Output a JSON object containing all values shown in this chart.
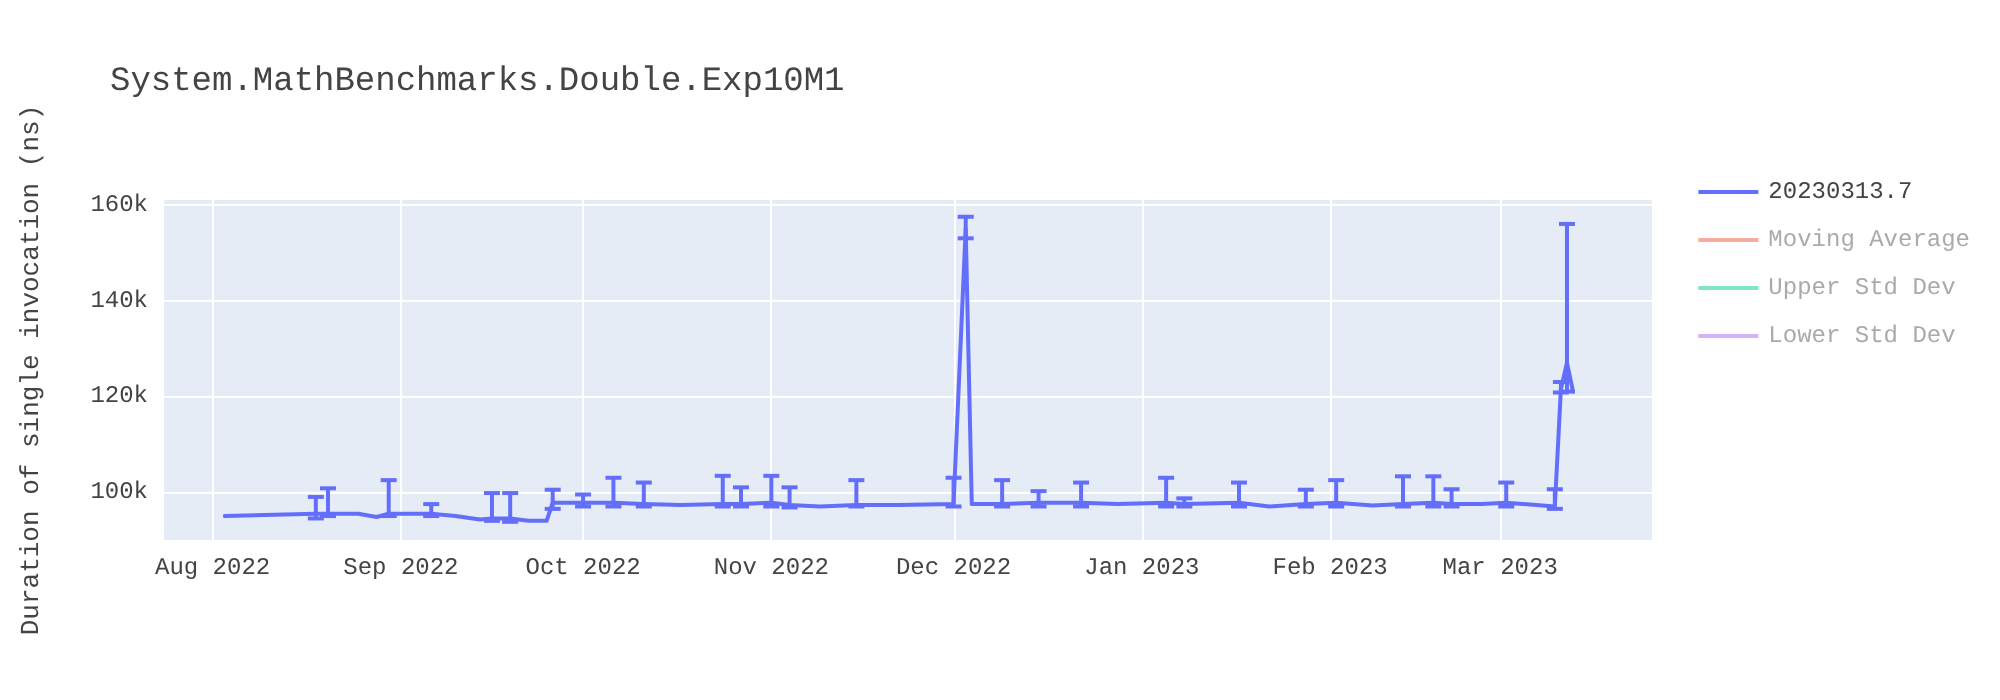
{
  "chart_data": {
    "type": "line",
    "title": "System.MathBenchmarks.Double.Exp10M1",
    "ylabel": "Duration of single invocation (ns)",
    "xlim": [
      "2022-07-24",
      "2023-03-26"
    ],
    "xticks": [
      {
        "value": "2022-08-01",
        "label": "Aug 2022"
      },
      {
        "value": "2022-09-01",
        "label": "Sep 2022"
      },
      {
        "value": "2022-10-01",
        "label": "Oct 2022"
      },
      {
        "value": "2022-11-01",
        "label": "Nov 2022"
      },
      {
        "value": "2022-12-01",
        "label": "Dec 2022"
      },
      {
        "value": "2023-01-01",
        "label": "Jan 2023"
      },
      {
        "value": "2023-02-01",
        "label": "Feb 2023"
      },
      {
        "value": "2023-03-01",
        "label": "Mar 2023"
      }
    ],
    "ylim": [
      90000,
      161000
    ],
    "yticks": [
      {
        "value": 100000,
        "label": "100k"
      },
      {
        "value": 120000,
        "label": "120k"
      },
      {
        "value": 140000,
        "label": "140k"
      },
      {
        "value": 160000,
        "label": "160k"
      }
    ],
    "grid": true,
    "legend": "top right",
    "series": [
      {
        "name": "20230313.7",
        "color": "#636efa",
        "x": [
          "2022-08-03",
          "2022-08-18",
          "2022-08-20",
          "2022-08-25",
          "2022-08-28",
          "2022-08-30",
          "2022-09-02",
          "2022-09-06",
          "2022-09-10",
          "2022-09-14",
          "2022-09-16",
          "2022-09-19",
          "2022-09-22",
          "2022-09-25",
          "2022-09-26",
          "2022-10-01",
          "2022-10-06",
          "2022-10-11",
          "2022-10-17",
          "2022-10-24",
          "2022-10-27",
          "2022-11-01",
          "2022-11-04",
          "2022-11-09",
          "2022-11-15",
          "2022-11-22",
          "2022-12-01",
          "2022-12-03",
          "2022-12-04",
          "2022-12-09",
          "2022-12-15",
          "2022-12-22",
          "2022-12-28",
          "2023-01-05",
          "2023-01-08",
          "2023-01-17",
          "2023-01-22",
          "2023-01-28",
          "2023-02-02",
          "2023-02-08",
          "2023-02-13",
          "2023-02-18",
          "2023-02-21",
          "2023-02-26",
          "2023-03-02",
          "2023-03-10",
          "2023-03-11",
          "2023-03-12",
          "2023-03-13"
        ],
        "values": [
          95000,
          95500,
          95500,
          95500,
          94800,
          95500,
          95500,
          95500,
          95000,
          94300,
          94500,
          94500,
          94000,
          94000,
          97800,
          97800,
          97800,
          97500,
          97300,
          97500,
          97500,
          97800,
          97300,
          97000,
          97300,
          97300,
          97500,
          155000,
          97500,
          97500,
          97800,
          97800,
          97500,
          97800,
          97500,
          97800,
          97000,
          97500,
          97800,
          97200,
          97500,
          97800,
          97500,
          97500,
          97800,
          97000,
          121500,
          127000,
          121000
        ],
        "errors": [
          null,
          [
            94500,
            99000
          ],
          [
            95000,
            100800
          ],
          null,
          null,
          [
            95000,
            102500
          ],
          null,
          [
            95000,
            97500
          ],
          null,
          null,
          [
            94000,
            99800
          ],
          [
            93800,
            99800
          ],
          null,
          null,
          [
            96500,
            100500
          ],
          [
            97000,
            99500
          ],
          [
            97000,
            103000
          ],
          [
            97000,
            102000
          ],
          null,
          [
            97000,
            103400
          ],
          [
            97000,
            101000
          ],
          [
            97000,
            103400
          ],
          [
            96800,
            101000
          ],
          null,
          [
            97000,
            102500
          ],
          null,
          [
            97000,
            103000
          ],
          [
            153000,
            157500
          ],
          null,
          [
            97000,
            102500
          ],
          [
            97000,
            100200
          ],
          [
            97000,
            102000
          ],
          null,
          [
            97000,
            103000
          ],
          [
            97000,
            98700
          ],
          [
            97000,
            102000
          ],
          null,
          [
            97000,
            100500
          ],
          [
            97000,
            102500
          ],
          null,
          [
            97000,
            103300
          ],
          [
            97000,
            103300
          ],
          [
            97000,
            100600
          ],
          null,
          [
            97000,
            102000
          ],
          [
            96500,
            100600
          ],
          [
            120800,
            123000
          ],
          [
            121000,
            156000
          ],
          null
        ]
      },
      {
        "name": "Moving Average",
        "color": "#ef553b"
      },
      {
        "name": "Upper Std Dev",
        "color": "#00cc96"
      },
      {
        "name": "Lower Std Dev",
        "color": "#ab63fa"
      }
    ]
  }
}
